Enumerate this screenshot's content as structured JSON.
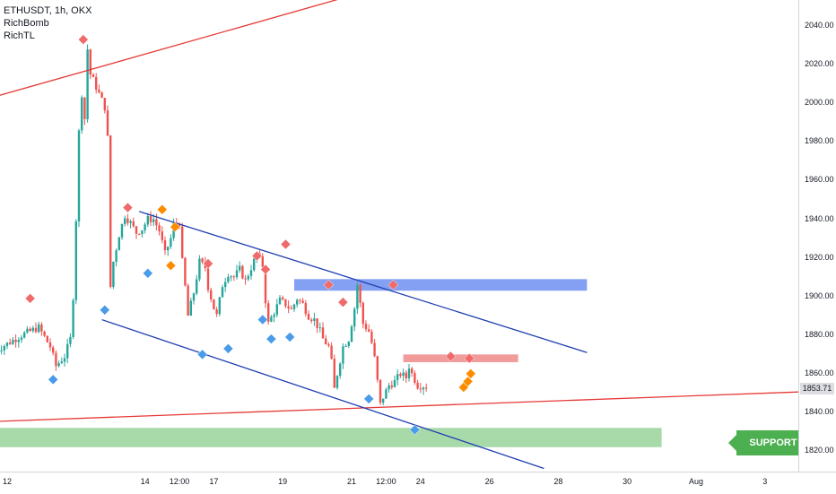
{
  "legend": {
    "symbol": "ETHUSDT, 1h, OKX",
    "indicators": [
      "RichBomb",
      "RichTL"
    ]
  },
  "current_price": "1853.71",
  "support_label": "SUPPORT ZONE",
  "colors": {
    "up_candle": "#26a69a",
    "down_candle": "#ef5350",
    "red_line": "#e53935",
    "channel": "#1e3fb0",
    "resistance_zone": "#6f8ff0",
    "red_zone": "#ef8a8a",
    "support_zone": "#9fd6a0",
    "buy_marker": "#4a9be8",
    "sell_marker": "#ef6b6b",
    "orange_marker": "#fb8c00"
  },
  "chart_data": {
    "type": "candlestick",
    "symbol": "ETHUSDT",
    "timeframe": "1h",
    "exchange": "OKX",
    "ylim": [
      1814,
      2052
    ],
    "y_ticks": [
      "2040.00",
      "2020.00",
      "2000.00",
      "1980.00",
      "1960.00",
      "1940.00",
      "1920.00",
      "1900.00",
      "1880.00",
      "1860.00",
      "1840.00",
      "1820.00"
    ],
    "x_ticks": [
      {
        "label": "12",
        "t": 0
      },
      {
        "label": "14",
        "t": 48
      },
      {
        "label": "12:00",
        "t": 60
      },
      {
        "label": "17",
        "t": 72
      },
      {
        "label": "19",
        "t": 96
      },
      {
        "label": "21",
        "t": 120
      },
      {
        "label": "12:00",
        "t": 132
      },
      {
        "label": "24",
        "t": 144
      },
      {
        "label": "26",
        "t": 168
      },
      {
        "label": "28",
        "t": 192
      },
      {
        "label": "30",
        "t": 216
      },
      {
        "label": "Aug",
        "t": 240
      },
      {
        "label": "3",
        "t": 264
      }
    ],
    "price_path": [
      [
        -4,
        1872
      ],
      [
        5,
        1880
      ],
      [
        11,
        1884
      ],
      [
        15,
        1874
      ],
      [
        17,
        1864
      ],
      [
        20,
        1869
      ],
      [
        22,
        1878
      ],
      [
        23,
        1900
      ],
      [
        24,
        1940
      ],
      [
        25,
        1985
      ],
      [
        26,
        2005
      ],
      [
        27,
        1992
      ],
      [
        28,
        2028
      ],
      [
        29,
        2015
      ],
      [
        30,
        2012
      ],
      [
        32,
        2005
      ],
      [
        34,
        1998
      ],
      [
        35,
        1982
      ],
      [
        36,
        1905
      ],
      [
        37,
        1918
      ],
      [
        39,
        1932
      ],
      [
        41,
        1942
      ],
      [
        43,
        1938
      ],
      [
        45,
        1933
      ],
      [
        47,
        1935
      ],
      [
        49,
        1940
      ],
      [
        51,
        1940
      ],
      [
        53,
        1934
      ],
      [
        55,
        1922
      ],
      [
        57,
        1930
      ],
      [
        58,
        1937
      ],
      [
        60,
        1938
      ],
      [
        61,
        1918
      ],
      [
        62,
        1905
      ],
      [
        63,
        1890
      ],
      [
        65,
        1902
      ],
      [
        67,
        1918
      ],
      [
        69,
        1915
      ],
      [
        70,
        1905
      ],
      [
        72,
        1894
      ],
      [
        73,
        1890
      ],
      [
        75,
        1906
      ],
      [
        77,
        1912
      ],
      [
        79,
        1910
      ],
      [
        81,
        1914
      ],
      [
        83,
        1908
      ],
      [
        85,
        1915
      ],
      [
        87,
        1922
      ],
      [
        89,
        1916
      ],
      [
        90,
        1898
      ],
      [
        91,
        1886
      ],
      [
        93,
        1892
      ],
      [
        95,
        1898
      ],
      [
        97,
        1896
      ],
      [
        99,
        1893
      ],
      [
        101,
        1899
      ],
      [
        103,
        1896
      ],
      [
        105,
        1890
      ],
      [
        107,
        1888
      ],
      [
        109,
        1882
      ],
      [
        110,
        1878
      ],
      [
        112,
        1874
      ],
      [
        113,
        1866
      ],
      [
        114,
        1852
      ],
      [
        115,
        1860
      ],
      [
        117,
        1874
      ],
      [
        119,
        1878
      ],
      [
        121,
        1894
      ],
      [
        122,
        1906
      ],
      [
        123,
        1896
      ],
      [
        124,
        1886
      ],
      [
        126,
        1882
      ],
      [
        127,
        1876
      ],
      [
        128,
        1868
      ],
      [
        129,
        1856
      ],
      [
        130,
        1844
      ],
      [
        131,
        1848
      ],
      [
        133,
        1854
      ],
      [
        135,
        1856
      ],
      [
        137,
        1860
      ],
      [
        139,
        1858
      ],
      [
        140,
        1864
      ],
      [
        141,
        1860
      ],
      [
        142,
        1857
      ],
      [
        143,
        1854
      ],
      [
        146,
        1853.71
      ]
    ],
    "overlays": {
      "red_trendline_upper": [
        [
          -10,
          2001
        ],
        [
          130,
          2060
        ]
      ],
      "red_trendline_lower": [
        [
          -10,
          1835
        ],
        [
          320,
          1853
        ]
      ],
      "channel_upper": [
        [
          46,
          1944
        ],
        [
          202,
          1871
        ]
      ],
      "channel_lower": [
        [
          33,
          1888
        ],
        [
          187,
          1811
        ]
      ],
      "resistance_zone": {
        "t_from": 100,
        "t_to": 202,
        "y_from": 1903,
        "y_to": 1909
      },
      "red_zone": {
        "t_from": 138,
        "t_to": 178,
        "y_from": 1866,
        "y_to": 1870
      },
      "support_zone": {
        "t_from": -20,
        "t_to": 228,
        "y_from": 1822,
        "y_to": 1832
      }
    },
    "markers": [
      {
        "type": "sell",
        "t": 8,
        "y": 1899
      },
      {
        "type": "buy",
        "t": 16,
        "y": 1857
      },
      {
        "type": "sell",
        "t": 26.5,
        "y": 2033
      },
      {
        "type": "buy",
        "t": 34,
        "y": 1893
      },
      {
        "type": "sell",
        "t": 42,
        "y": 1946
      },
      {
        "type": "buy",
        "t": 49,
        "y": 1912
      },
      {
        "type": "orange",
        "t": 54,
        "y": 1945
      },
      {
        "type": "orange",
        "t": 57,
        "y": 1916
      },
      {
        "type": "orange",
        "t": 58.5,
        "y": 1936
      },
      {
        "type": "sell",
        "t": 70,
        "y": 1917
      },
      {
        "type": "buy",
        "t": 68,
        "y": 1870
      },
      {
        "type": "buy",
        "t": 77,
        "y": 1873
      },
      {
        "type": "sell",
        "t": 87,
        "y": 1921
      },
      {
        "type": "sell",
        "t": 90,
        "y": 1914
      },
      {
        "type": "buy",
        "t": 89,
        "y": 1888
      },
      {
        "type": "buy",
        "t": 92,
        "y": 1878
      },
      {
        "type": "sell",
        "t": 97,
        "y": 1927
      },
      {
        "type": "buy",
        "t": 98.5,
        "y": 1879
      },
      {
        "type": "sell",
        "t": 112,
        "y": 1906
      },
      {
        "type": "sell",
        "t": 117,
        "y": 1897
      },
      {
        "type": "buy",
        "t": 126,
        "y": 1847
      },
      {
        "type": "sell",
        "t": 134.5,
        "y": 1906
      },
      {
        "type": "buy",
        "t": 142,
        "y": 1831
      },
      {
        "type": "sell",
        "t": 154.5,
        "y": 1869
      },
      {
        "type": "sell",
        "t": 161,
        "y": 1868
      },
      {
        "type": "orange",
        "t": 159,
        "y": 1853
      },
      {
        "type": "orange",
        "t": 160.5,
        "y": 1856
      },
      {
        "type": "orange",
        "t": 161.5,
        "y": 1860
      }
    ]
  }
}
